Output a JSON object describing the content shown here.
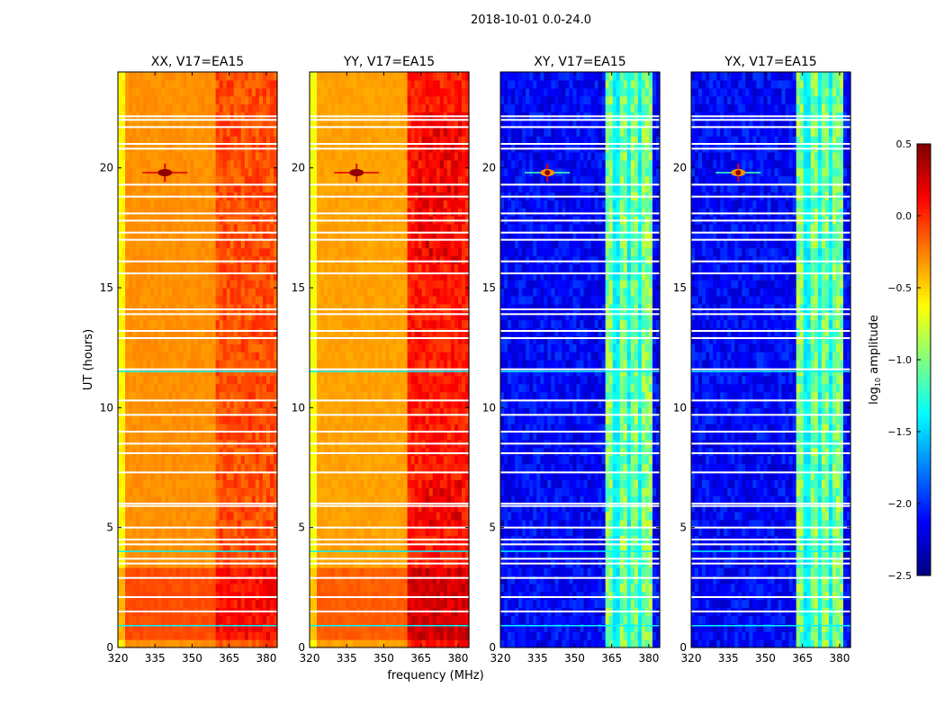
{
  "chart_data": {
    "type": "heatmap",
    "title": "2018-10-01 0.0-24.0",
    "xlabel": "frequency (MHz)",
    "ylabel": "UT (hours)",
    "xlim": [
      320,
      384.4
    ],
    "ylim": [
      0,
      24
    ],
    "xticks": [
      "320",
      "335",
      "350",
      "365",
      "380"
    ],
    "xtick_values": [
      320,
      335,
      350,
      365,
      380
    ],
    "yticks": [
      "0",
      "5",
      "10",
      "15",
      "20"
    ],
    "ytick_values": [
      0,
      5,
      10,
      15,
      20
    ],
    "panels": [
      {
        "title": "XX, V17=EA15",
        "kind": "auto",
        "base": -0.3,
        "band_value": -0.1
      },
      {
        "title": "YY, V17=EA15",
        "kind": "auto",
        "base": -0.35,
        "band_value": 0.05
      },
      {
        "title": "XY, V17=EA15",
        "kind": "cross",
        "base": -2.3,
        "band_value": -1.0
      },
      {
        "title": "YX, V17=EA15",
        "kind": "cross",
        "base": -2.3,
        "band_value": -1.0
      }
    ],
    "rfi_band_mhz": [
      362,
      381
    ],
    "rfi_point": {
      "freq_mhz": 339,
      "ut_hours": 19.8
    },
    "flagged_ut_hours": [
      1.5,
      2.1,
      2.9,
      3.5,
      3.7,
      4.3,
      4.5,
      5.0,
      5.9,
      6.0,
      7.3,
      8.1,
      8.5,
      9.0,
      9.7,
      10.3,
      11.6,
      12.9,
      13.2,
      13.9,
      14.1,
      15.6,
      16.1,
      17.0,
      17.3,
      17.8,
      18.1,
      18.8,
      19.3,
      20.8,
      21.0,
      21.7,
      22.0,
      22.15
    ],
    "colorbar": {
      "label_prefix": "log",
      "label_sub": "10",
      "label_suffix": " amplitude",
      "range": [
        -2.5,
        0.5
      ],
      "colormap": "jet",
      "ticks": [
        "0.5",
        "0.0",
        "−0.5",
        "−1.0",
        "−1.5",
        "−2.0",
        "−2.5"
      ],
      "tick_values": [
        0.5,
        0.0,
        -0.5,
        -1.0,
        -1.5,
        -2.0,
        -2.5
      ]
    }
  }
}
